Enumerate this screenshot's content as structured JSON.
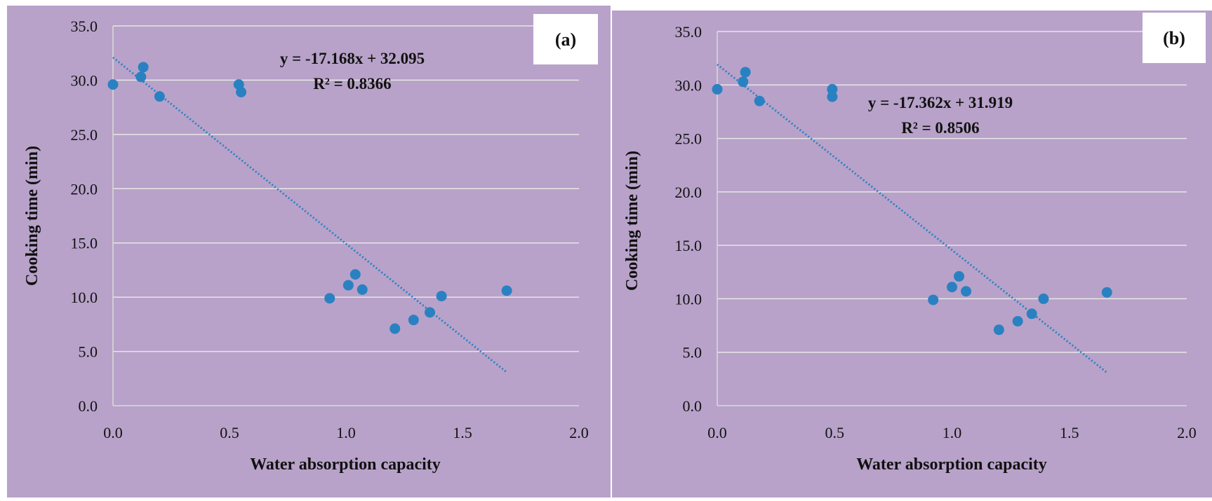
{
  "colors": {
    "plot_background": "#b8a2c9",
    "gridline": "#e6e6e6",
    "marker": "#2a81c2",
    "trendline": "#2a81c2",
    "tag_box": "#ffffff"
  },
  "chart_data": [
    {
      "type": "scatter",
      "panel_label": "(a)",
      "xlabel": "Water absorption capacity",
      "ylabel": "Cooking time (min)",
      "xlim": [
        0.0,
        2.0
      ],
      "ylim": [
        0.0,
        35.0
      ],
      "x_ticks": [
        "0.0",
        "0.5",
        "1.0",
        "1.5",
        "2.0"
      ],
      "y_ticks": [
        "0.0",
        "5.0",
        "10.0",
        "15.0",
        "20.0",
        "25.0",
        "30.0",
        "35.0"
      ],
      "grid": true,
      "x": [
        0.0,
        0.12,
        0.13,
        0.2,
        0.54,
        0.55,
        0.93,
        1.01,
        1.04,
        1.07,
        1.21,
        1.29,
        1.36,
        1.41,
        1.69
      ],
      "y": [
        29.6,
        30.3,
        31.2,
        28.5,
        29.6,
        28.9,
        9.9,
        11.1,
        12.1,
        10.7,
        7.1,
        7.9,
        8.6,
        10.1,
        10.6
      ],
      "trendline": {
        "slope": -17.168,
        "intercept": 32.095,
        "x_range": [
          0.0,
          1.69
        ],
        "style": "dotted"
      },
      "equation": "y = -17.168x + 32.095",
      "r2": "R² = 0.8366"
    },
    {
      "type": "scatter",
      "panel_label": "(b)",
      "xlabel": "Water absorption capacity",
      "ylabel": "Cooking time (min)",
      "xlim": [
        0.0,
        2.0
      ],
      "ylim": [
        0.0,
        35.0
      ],
      "x_ticks": [
        "0.0",
        "0.5",
        "1.0",
        "1.5",
        "2.0"
      ],
      "y_ticks": [
        "0.0",
        "5.0",
        "10.0",
        "15.0",
        "20.0",
        "25.0",
        "30.0",
        "35.0"
      ],
      "grid": true,
      "x": [
        0.0,
        0.11,
        0.12,
        0.18,
        0.49,
        0.49,
        0.92,
        1.0,
        1.03,
        1.06,
        1.2,
        1.28,
        1.34,
        1.39,
        1.66
      ],
      "y": [
        29.6,
        30.3,
        31.2,
        28.5,
        29.6,
        28.9,
        9.9,
        11.1,
        12.1,
        10.7,
        7.1,
        7.9,
        8.6,
        10.0,
        10.6
      ],
      "trendline": {
        "slope": -17.362,
        "intercept": 31.919,
        "x_range": [
          0.0,
          1.66
        ],
        "style": "dotted"
      },
      "equation": "y = -17.362x + 31.919",
      "r2": "R² = 0.8506"
    }
  ]
}
